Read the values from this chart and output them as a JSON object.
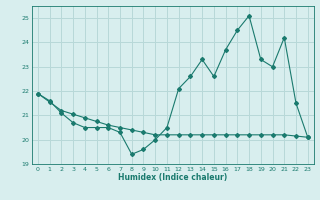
{
  "line1_x": [
    0,
    1,
    2,
    3,
    4,
    5,
    6,
    7,
    8,
    9,
    10,
    11,
    12,
    13,
    14,
    15,
    16,
    17,
    18,
    19,
    20,
    21,
    22,
    23
  ],
  "line1_y": [
    21.9,
    21.6,
    21.1,
    20.7,
    20.5,
    20.5,
    20.5,
    20.3,
    19.4,
    19.6,
    20.0,
    20.5,
    22.1,
    22.6,
    23.3,
    22.6,
    23.7,
    24.5,
    25.1,
    23.3,
    23.0,
    24.2,
    21.5,
    20.1
  ],
  "line2_x": [
    0,
    1,
    2,
    3,
    4,
    5,
    6,
    7,
    8,
    9,
    10,
    11,
    12,
    13,
    14,
    15,
    16,
    17,
    18,
    19,
    20,
    21,
    22,
    23
  ],
  "line2_y": [
    21.9,
    21.55,
    21.2,
    21.05,
    20.9,
    20.75,
    20.6,
    20.5,
    20.4,
    20.3,
    20.2,
    20.2,
    20.2,
    20.2,
    20.2,
    20.2,
    20.2,
    20.2,
    20.2,
    20.2,
    20.2,
    20.2,
    20.15,
    20.1
  ],
  "line_color": "#1a7a6e",
  "bg_color": "#d8eeee",
  "grid_color": "#b8d8d8",
  "xlabel": "Humidex (Indice chaleur)",
  "ylim": [
    19,
    25.5
  ],
  "xlim": [
    -0.5,
    23.5
  ],
  "yticks": [
    19,
    20,
    21,
    22,
    23,
    24,
    25
  ],
  "xticks": [
    0,
    1,
    2,
    3,
    4,
    5,
    6,
    7,
    8,
    9,
    10,
    11,
    12,
    13,
    14,
    15,
    16,
    17,
    18,
    19,
    20,
    21,
    22,
    23
  ]
}
